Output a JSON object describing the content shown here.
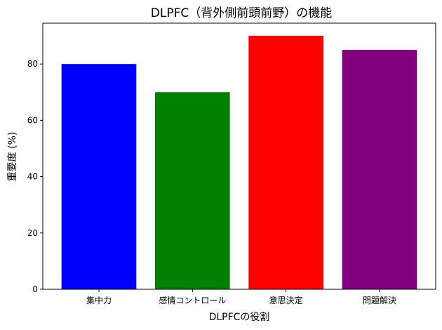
{
  "chart_data": {
    "type": "bar",
    "title": "DLPFC（背外側前頭前野）の機能",
    "xlabel": "DLPFCの役割",
    "ylabel": "重要度 (%)",
    "categories": [
      "集中力",
      "感情コントロール",
      "意思決定",
      "問題解決"
    ],
    "values": [
      80,
      70,
      90,
      85
    ],
    "colors": [
      "#0000ff",
      "#008000",
      "#ff0000",
      "#800080"
    ],
    "ylim": [
      0,
      94.5
    ],
    "yticks": [
      0,
      20,
      40,
      60,
      80
    ],
    "grid": false
  }
}
